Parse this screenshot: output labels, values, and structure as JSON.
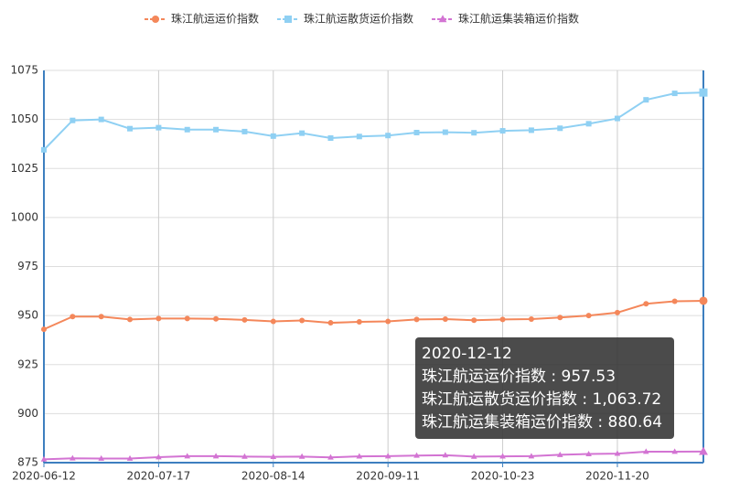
{
  "chart_data": {
    "type": "line",
    "categories": [
      "2020-06-12",
      null,
      null,
      null,
      "2020-07-17",
      null,
      null,
      null,
      "2020-08-14",
      null,
      null,
      null,
      "2020-09-11",
      null,
      null,
      null,
      "2020-10-23",
      null,
      null,
      null,
      "2020-11-20",
      null,
      null,
      null
    ],
    "series": [
      {
        "name": "珠江航运运价指数",
        "color": "#f4875a",
        "marker": "circle",
        "values": [
          943,
          949.5,
          949.5,
          948,
          948.5,
          948.5,
          948.3,
          947.8,
          947,
          947.5,
          946.3,
          946.8,
          947,
          948,
          948.2,
          947.6,
          948,
          948.2,
          949,
          950,
          951.5,
          956,
          957.3,
          957.53
        ]
      },
      {
        "name": "珠江航运散货运价指数",
        "color": "#8fd0f3",
        "marker": "square",
        "values": [
          1034.5,
          1049.5,
          1050,
          1045.3,
          1045.8,
          1044.8,
          1044.8,
          1043.8,
          1041.5,
          1043,
          1040.5,
          1041.3,
          1041.8,
          1043.3,
          1043.5,
          1043.2,
          1044.2,
          1044.5,
          1045.5,
          1047.8,
          1050.5,
          1060,
          1063.3,
          1063.72
        ]
      },
      {
        "name": "珠江航运集装箱运价指数",
        "color": "#d374d3",
        "marker": "triangle",
        "values": [
          876.7,
          877.2,
          877.1,
          877.1,
          877.8,
          878.3,
          878.3,
          878.1,
          878,
          878.1,
          877.7,
          878.2,
          878.3,
          878.6,
          878.8,
          878.1,
          878.2,
          878.3,
          879,
          879.4,
          879.6,
          880.6,
          880.6,
          880.64
        ]
      }
    ],
    "ylim": [
      875,
      1075
    ],
    "yticks": [
      875,
      900,
      925,
      950,
      975,
      1000,
      1025,
      1050,
      1075
    ],
    "grid": true,
    "tooltip": {
      "title": "2020-12-12",
      "index": 23,
      "lines": [
        "珠江航运运价指数 : 957.53",
        "珠江航运散货运价指数 : 1,063.72",
        "珠江航运集装箱运价指数 : 880.64"
      ]
    }
  }
}
